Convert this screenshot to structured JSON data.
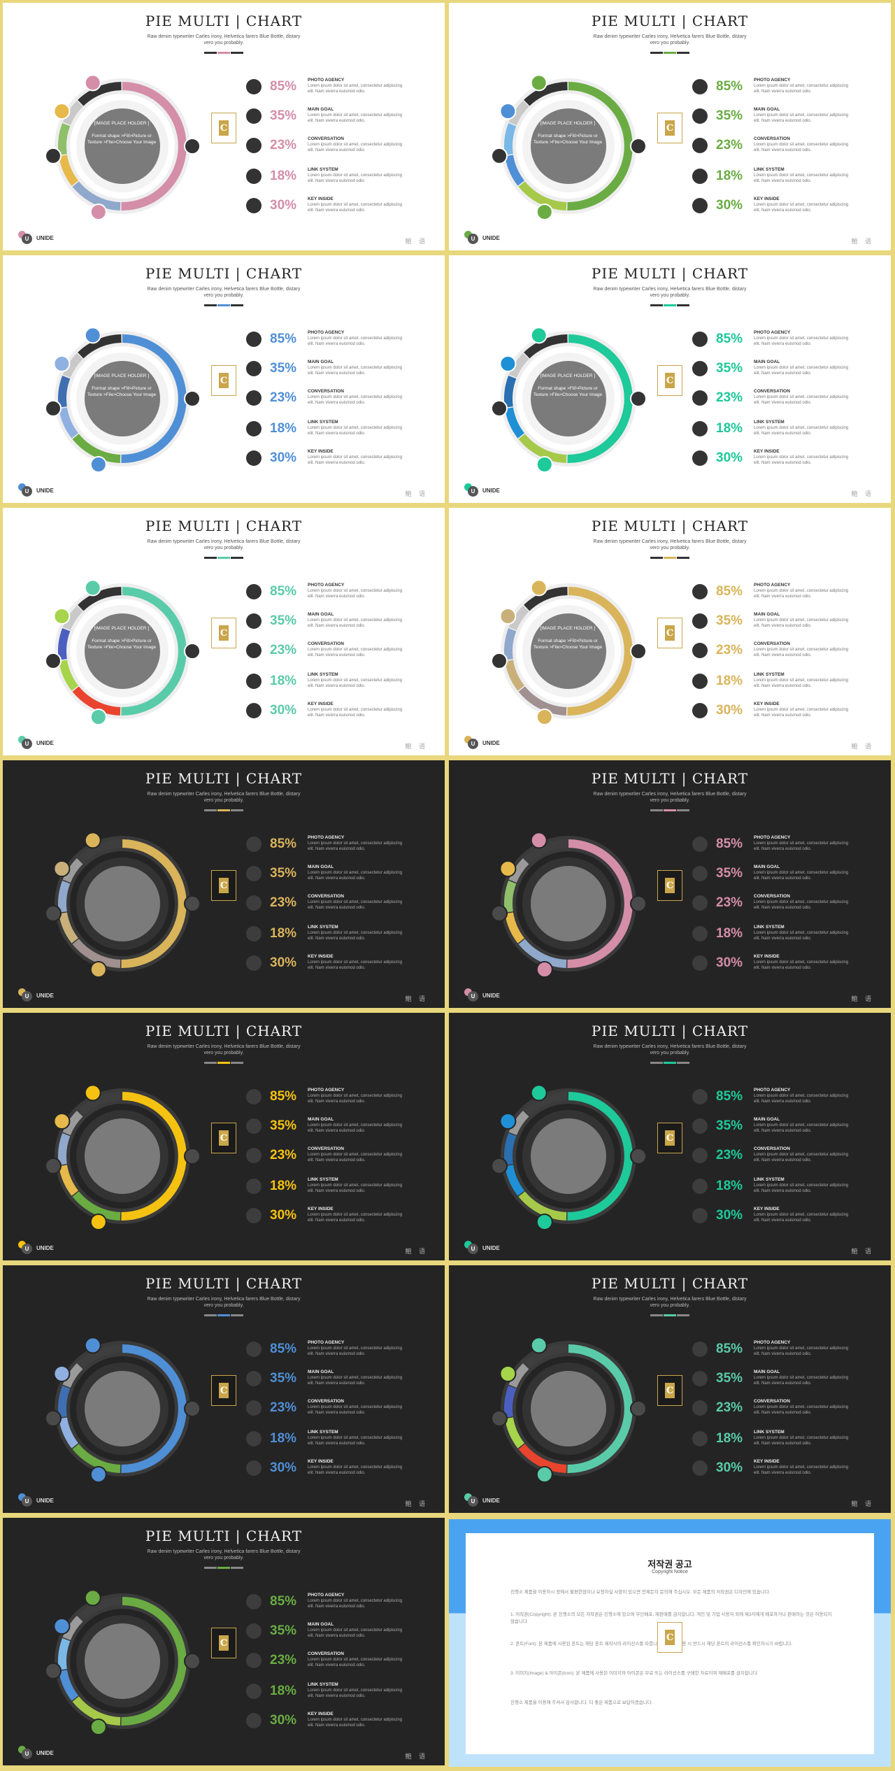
{
  "title": "PIE MULTI | CHART",
  "subtitle": "Raw denim typewriter Carles irony, Helvetica farers Blue Bottle, distary vero you probably.",
  "image_placeholder": "[IMAGE PLACE HOLDER ]\n\nFormat shape >Fill>Picture or Texture >File>Choose Your Image",
  "logo_letter": "C",
  "brand_name": "UNIDE",
  "brand_mark": "U",
  "corner_text": "鮑 语",
  "items": [
    {
      "percent": "85%",
      "label": "PHOTO AGENCY",
      "desc": "Lorem ipsum dolor sit amet, consectetur adipiscing elit. Nam viverra euismod odio."
    },
    {
      "percent": "35%",
      "label": "MAIN GOAL",
      "desc": "Lorem ipsum dolor sit amet, consectetur adipiscing elit. Nam viverra euismod odio."
    },
    {
      "percent": "23%",
      "label": "CONVERSATION",
      "desc": "Lorem ipsum dolor sit amet, consectetur adipiscing elit. Nam viverra euismod odio."
    },
    {
      "percent": "18%",
      "label": "LINK SYSTEM",
      "desc": "Lorem ipsum dolor sit amet, consectetur adipiscing elit. Nam viverra euismod odio."
    },
    {
      "percent": "30%",
      "label": "KEY INSIDE",
      "desc": "Lorem ipsum dolor sit amet, consectetur adipiscing elit. Nam viverra euismod odio."
    }
  ],
  "slides": [
    {
      "theme": "light",
      "accent": "#d48ea8",
      "palette": [
        "#d48ea8",
        "#8fa8cc",
        "#e6b94a",
        "#8fbf6a",
        "#c9c9c9"
      ]
    },
    {
      "theme": "light",
      "accent": "#6aac43",
      "palette": [
        "#6aac43",
        "#a6c94a",
        "#4f8fd6",
        "#7ab8e6",
        "#c9c9c9"
      ]
    },
    {
      "theme": "light",
      "accent": "#4f8fd6",
      "palette": [
        "#4f8fd6",
        "#6aac43",
        "#8fb0e0",
        "#3f6fb0",
        "#c9c9c9"
      ]
    },
    {
      "theme": "light",
      "accent": "#1ec99a",
      "palette": [
        "#1ec99a",
        "#a6c94a",
        "#1f8fd6",
        "#2a6fb0",
        "#c9c9c9"
      ]
    },
    {
      "theme": "light",
      "accent": "#5acba8",
      "palette": [
        "#5acba8",
        "#e8442e",
        "#a6d44a",
        "#4a5fc0",
        "#c9c9c9"
      ]
    },
    {
      "theme": "light",
      "accent": "#d9b45a",
      "palette": [
        "#d9b45a",
        "#a09090",
        "#c9b07a",
        "#8fa8cc",
        "#c9c9c9"
      ]
    },
    {
      "theme": "dark",
      "accent": "#d9b45a",
      "palette": [
        "#d9b45a",
        "#a09090",
        "#c9b07a",
        "#8fa8cc",
        "#9a9a9a"
      ]
    },
    {
      "theme": "dark",
      "accent": "#d48ea8",
      "palette": [
        "#d48ea8",
        "#8fa8cc",
        "#e6b94a",
        "#8fbf6a",
        "#9a9a9a"
      ]
    },
    {
      "theme": "dark",
      "accent": "#f5c211",
      "palette": [
        "#f5c211",
        "#6aac43",
        "#e6b94a",
        "#8fa8cc",
        "#9a9a9a"
      ]
    },
    {
      "theme": "dark",
      "accent": "#1ec99a",
      "palette": [
        "#1ec99a",
        "#a6c94a",
        "#1f8fd6",
        "#2a6fb0",
        "#9a9a9a"
      ]
    },
    {
      "theme": "dark",
      "accent": "#4f8fd6",
      "palette": [
        "#4f8fd6",
        "#6aac43",
        "#8fb0e0",
        "#3f6fb0",
        "#9a9a9a"
      ]
    },
    {
      "theme": "dark",
      "accent": "#5acba8",
      "palette": [
        "#5acba8",
        "#e8442e",
        "#a6d44a",
        "#4a5fc0",
        "#9a9a9a"
      ]
    },
    {
      "theme": "dark",
      "accent": "#6aac43",
      "palette": [
        "#6aac43",
        "#a6c94a",
        "#4f8fd6",
        "#7ab8e6",
        "#9a9a9a"
      ]
    }
  ],
  "copyright": {
    "title": "저작권 공고",
    "subtitle": "Copyright Notice",
    "paragraphs": [
      "진행소 제품을 이용하시 정에서 불편한점이나 요청하실 사항이 있으면 언제든지 문의해 주십시오. 모든 제품의 저작권은 디자인에 있습니다.",
      "1. 저작권(Copyright): 본 진행소의 모든 저작권은 진행소에 있으며 무단배포, 재판매를 금지합니다. 개인 및 기업 사용자 외에 제3자에게 배포하거나 판매하는 것은 허용되지 않습니다.",
      "2. 폰트(Font): 본 제품에 사용된 폰트는 해당 폰트 제작사의 라이선스를 따릅니다. 상업적 이용 시 반드시 해당 폰트의 라이선스를 확인하시기 바랍니다.",
      "3. 이미지(Image) & 아이콘(Icon): 본 제품에 사용된 이미지와 아이콘은 무료 또는 라이선스를 구매한 자료이며 재배포를 금지합니다.",
      "진행소 제품을 이용해 주셔서 감사합니다. 더 좋은 제품으로 보답하겠습니다."
    ]
  }
}
